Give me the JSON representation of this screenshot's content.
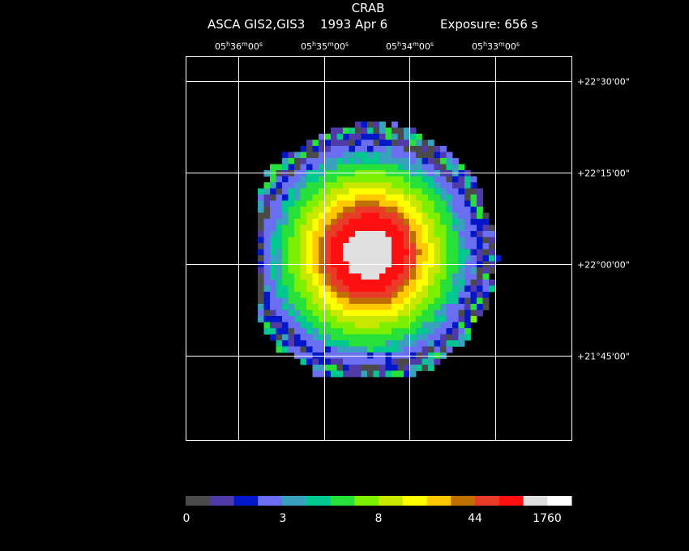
{
  "chart_data": {
    "type": "heatmap",
    "title": "CRAB",
    "subtitle": {
      "instrument": "ASCA GIS2,GIS3",
      "date": "1993 Apr  6",
      "exposure": "Exposure: 656 s"
    },
    "x_ticks": [
      {
        "h": "05",
        "m": "36",
        "s": "00"
      },
      {
        "h": "05",
        "m": "35",
        "s": "00"
      },
      {
        "h": "05",
        "m": "34",
        "s": "00"
      },
      {
        "h": "05",
        "m": "33",
        "s": "00"
      }
    ],
    "y_ticks": [
      "+22°30'00\"",
      "+22°15'00\"",
      "+22°00'00\"",
      "+21°45'00\""
    ],
    "grid": true,
    "source_center": {
      "ra_minutes_offset": 0.5,
      "dec_arcmin": 0.0
    },
    "colorbar": {
      "colors": [
        "#4a4a4a",
        "#4f3aa8",
        "#0018c8",
        "#6a6ef0",
        "#3aa0c0",
        "#00c890",
        "#28e03a",
        "#7cf000",
        "#c8e800",
        "#ffff00",
        "#ffc800",
        "#c07000",
        "#e83c28",
        "#ff1010",
        "#e0e0e0",
        "#ffffff"
      ],
      "tick_labels": [
        "0",
        "3",
        "8",
        "44",
        "1760"
      ]
    }
  }
}
